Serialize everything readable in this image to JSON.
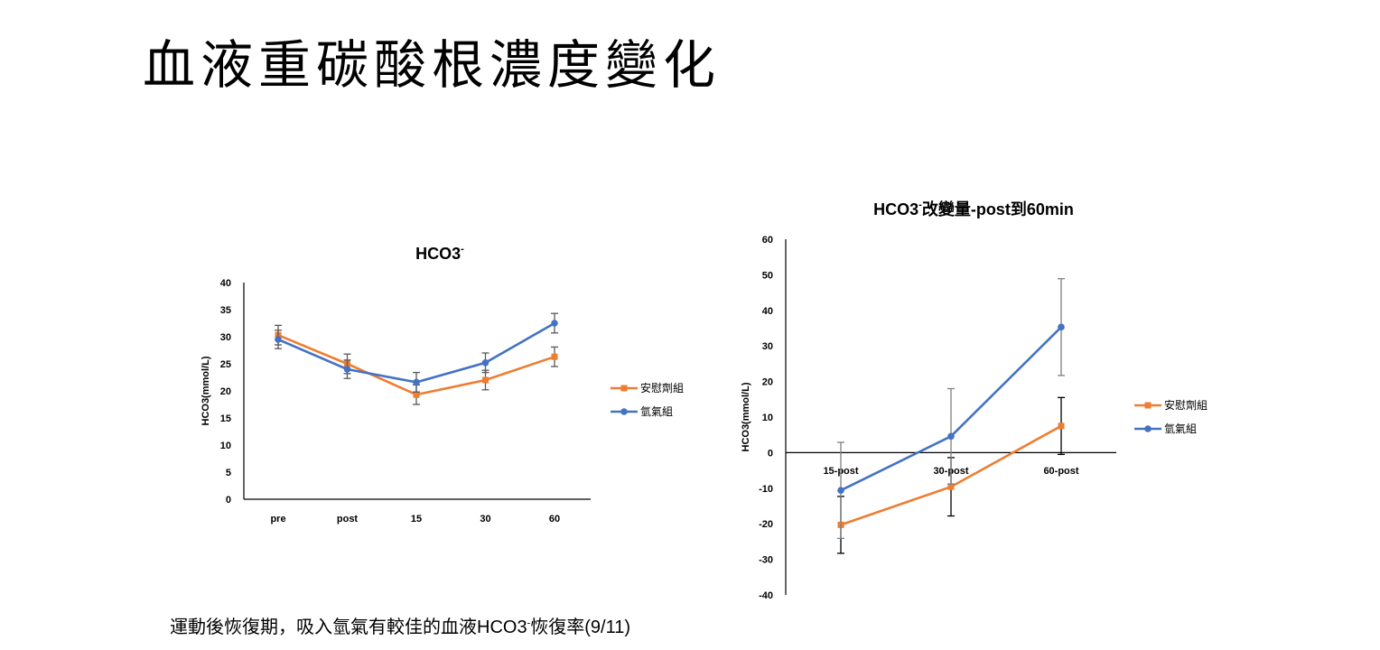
{
  "slide": {
    "title": "血液重碳酸根濃度變化",
    "caption_main": "運動後恢復期，吸入氫氣有較佳的血液HCO3",
    "caption_sup": "-",
    "caption_end": "恢復率(9/11)"
  },
  "chart_data": [
    {
      "type": "line",
      "title": "HCO3",
      "title_sup": "-",
      "xlabel": "",
      "ylabel": "HCO3(mmol/L)",
      "categories": [
        "pre",
        "post",
        "15",
        "30",
        "60"
      ],
      "ylim": [
        0,
        40
      ],
      "yticks": [
        0,
        5,
        10,
        15,
        20,
        25,
        30,
        35,
        40
      ],
      "legend_position": "right",
      "series": [
        {
          "name": "安慰劑組",
          "color": "#ED7D31",
          "marker": "square",
          "values": [
            30.3,
            25.0,
            19.3,
            22.0,
            26.3
          ],
          "errors": [
            1.8,
            1.8,
            1.8,
            1.8,
            1.8
          ]
        },
        {
          "name": "氫氣組",
          "color": "#4472C4",
          "marker": "circle",
          "values": [
            29.5,
            24.0,
            21.6,
            25.2,
            32.5
          ],
          "errors": [
            1.7,
            1.7,
            1.8,
            1.8,
            1.8
          ]
        }
      ]
    },
    {
      "type": "line",
      "title": "HCO3",
      "title_sup": "-",
      "title_rest": "改變量-post到60min",
      "xlabel": "",
      "ylabel": "HCO3(mmol/L)",
      "categories": [
        "15-post",
        "30-post",
        "60-post"
      ],
      "ylim": [
        -40,
        60
      ],
      "yticks": [
        -40,
        -30,
        -20,
        -10,
        0,
        10,
        20,
        30,
        40,
        50,
        60
      ],
      "legend_position": "right",
      "series": [
        {
          "name": "安慰劑組",
          "color": "#ED7D31",
          "marker": "square",
          "values": [
            -20.3,
            -9.6,
            7.5
          ],
          "errors": [
            8.0,
            8.2,
            8.0
          ],
          "error_color": "#000000"
        },
        {
          "name": "氫氣組",
          "color": "#4472C4",
          "marker": "circle",
          "values": [
            -10.6,
            4.6,
            35.3
          ],
          "errors": [
            13.5,
            13.4,
            13.6
          ],
          "error_color": "#7F7F7F"
        }
      ]
    }
  ]
}
